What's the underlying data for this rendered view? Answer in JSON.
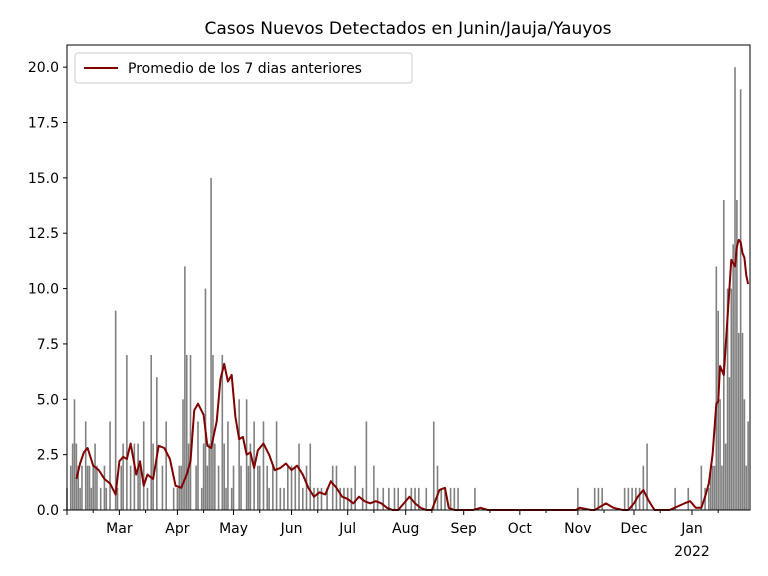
{
  "chart_data": {
    "type": "bar",
    "title": "Casos Nuevos Detectados en Junin/Jauja/Yauyos",
    "xlabel": "",
    "ylabel": "",
    "ylim": [
      0,
      21
    ],
    "yticks": [
      "0.0",
      "2.5",
      "5.0",
      "7.5",
      "10.0",
      "12.5",
      "15.0",
      "17.5",
      "20.0"
    ],
    "xlim": [
      "2021-02-01",
      "2022-02-01"
    ],
    "xticks": [
      {
        "label": "Mar",
        "sublabel": "",
        "date": "2021-03-01"
      },
      {
        "label": "Apr",
        "sublabel": "",
        "date": "2021-04-01"
      },
      {
        "label": "May",
        "sublabel": "",
        "date": "2021-05-01"
      },
      {
        "label": "Jun",
        "sublabel": "",
        "date": "2021-06-01"
      },
      {
        "label": "Jul",
        "sublabel": "",
        "date": "2021-07-01"
      },
      {
        "label": "Aug",
        "sublabel": "",
        "date": "2021-08-01"
      },
      {
        "label": "Sep",
        "sublabel": "",
        "date": "2021-09-01"
      },
      {
        "label": "Oct",
        "sublabel": "",
        "date": "2021-10-01"
      },
      {
        "label": "Nov",
        "sublabel": "",
        "date": "2021-11-01"
      },
      {
        "label": "Dec",
        "sublabel": "",
        "date": "2021-12-01"
      },
      {
        "label": "Jan",
        "sublabel": "2022",
        "date": "2022-01-01"
      }
    ],
    "grid": false,
    "legend": {
      "placement": "top-left",
      "entries": [
        "Promedio de los 7 dias anteriores"
      ]
    },
    "colors": {
      "bars": "#808080",
      "line": "#800000"
    },
    "series": [
      {
        "type": "bar",
        "x": [
          "2021-02-01",
          "2021-02-03",
          "2021-02-04",
          "2021-02-05",
          "2021-02-06",
          "2021-02-07",
          "2021-02-08",
          "2021-02-09",
          "2021-02-11",
          "2021-02-12",
          "2021-02-13",
          "2021-02-14",
          "2021-02-15",
          "2021-02-16",
          "2021-02-17",
          "2021-02-19",
          "2021-02-21",
          "2021-02-22",
          "2021-02-24",
          "2021-02-27",
          "2021-02-28",
          "2021-03-02",
          "2021-03-03",
          "2021-03-05",
          "2021-03-07",
          "2021-03-09",
          "2021-03-11",
          "2021-03-12",
          "2021-03-14",
          "2021-03-16",
          "2021-03-18",
          "2021-03-19",
          "2021-03-21",
          "2021-03-24",
          "2021-03-26",
          "2021-03-30",
          "2021-04-01",
          "2021-04-02",
          "2021-04-03",
          "2021-04-04",
          "2021-04-05",
          "2021-04-06",
          "2021-04-07",
          "2021-04-08",
          "2021-04-11",
          "2021-04-12",
          "2021-04-14",
          "2021-04-15",
          "2021-04-16",
          "2021-04-17",
          "2021-04-18",
          "2021-04-19",
          "2021-04-20",
          "2021-04-21",
          "2021-04-23",
          "2021-04-25",
          "2021-04-26",
          "2021-04-27",
          "2021-04-28",
          "2021-04-30",
          "2021-05-01",
          "2021-05-04",
          "2021-05-05",
          "2021-05-08",
          "2021-05-09",
          "2021-05-10",
          "2021-05-12",
          "2021-05-14",
          "2021-05-15",
          "2021-05-17",
          "2021-05-19",
          "2021-05-20",
          "2021-05-22",
          "2021-05-24",
          "2021-05-26",
          "2021-05-28",
          "2021-05-30",
          "2021-06-01",
          "2021-06-03",
          "2021-06-05",
          "2021-06-07",
          "2021-06-09",
          "2021-06-11",
          "2021-06-13",
          "2021-06-15",
          "2021-06-17",
          "2021-06-20",
          "2021-06-23",
          "2021-06-25",
          "2021-06-27",
          "2021-06-29",
          "2021-07-01",
          "2021-07-03",
          "2021-07-05",
          "2021-07-09",
          "2021-07-11",
          "2021-07-15",
          "2021-07-17",
          "2021-07-20",
          "2021-07-23",
          "2021-07-26",
          "2021-07-28",
          "2021-08-01",
          "2021-08-04",
          "2021-08-06",
          "2021-08-08",
          "2021-08-12",
          "2021-08-16",
          "2021-08-18",
          "2021-08-20",
          "2021-08-22",
          "2021-08-25",
          "2021-08-27",
          "2021-08-29",
          "2021-09-07",
          "2021-11-01",
          "2021-11-10",
          "2021-11-12",
          "2021-11-14",
          "2021-11-26",
          "2021-11-28",
          "2021-11-30",
          "2021-12-02",
          "2021-12-04",
          "2021-12-06",
          "2021-12-08",
          "2021-12-23",
          "2021-12-30",
          "2022-01-06",
          "2022-01-08",
          "2022-01-10",
          "2022-01-11",
          "2022-01-12",
          "2022-01-13",
          "2022-01-14",
          "2022-01-15",
          "2022-01-16",
          "2022-01-17",
          "2022-01-18",
          "2022-01-19",
          "2022-01-20",
          "2022-01-21",
          "2022-01-22",
          "2022-01-23",
          "2022-01-24",
          "2022-01-25",
          "2022-01-26",
          "2022-01-27",
          "2022-01-28",
          "2022-01-29",
          "2022-01-30",
          "2022-01-31"
        ],
        "values": [
          1,
          2,
          3,
          5,
          3,
          2,
          1,
          2,
          4,
          2,
          2,
          1,
          2,
          3,
          2,
          1,
          2,
          1,
          4,
          9,
          1,
          2,
          3,
          7,
          2,
          3,
          3,
          2,
          4,
          1,
          7,
          3,
          6,
          2,
          4,
          1,
          1,
          2,
          2,
          5,
          11,
          7,
          3,
          7,
          2,
          4,
          1,
          3,
          10,
          2,
          3,
          15,
          7,
          3,
          2,
          7,
          3,
          1,
          4,
          1,
          2,
          5,
          2,
          5,
          2,
          3,
          4,
          2,
          2,
          4,
          2,
          1,
          2,
          4,
          1,
          1,
          2,
          2,
          2,
          3,
          1,
          2,
          3,
          1,
          1,
          1,
          1,
          2,
          2,
          1,
          1,
          1,
          1,
          2,
          1,
          4,
          2,
          1,
          1,
          1,
          1,
          1,
          1,
          1,
          1,
          1,
          1,
          4,
          2,
          1,
          1,
          1,
          1,
          1,
          1,
          1,
          1,
          1,
          1,
          1,
          1,
          1,
          1,
          1,
          2,
          3,
          1,
          1,
          2,
          1,
          1,
          2,
          2,
          2,
          11,
          9,
          5,
          2,
          14,
          3,
          10,
          6,
          10,
          12,
          20,
          14,
          8,
          19,
          8,
          5,
          2,
          4
        ]
      },
      {
        "type": "line",
        "name": "Promedio de los 7 dias anteriores",
        "x": [
          "2021-02-06",
          "2021-02-08",
          "2021-02-10",
          "2021-02-12",
          "2021-02-15",
          "2021-02-18",
          "2021-02-21",
          "2021-02-24",
          "2021-02-27",
          "2021-03-01",
          "2021-03-03",
          "2021-03-05",
          "2021-03-07",
          "2021-03-10",
          "2021-03-12",
          "2021-03-14",
          "2021-03-16",
          "2021-03-19",
          "2021-03-22",
          "2021-03-25",
          "2021-03-28",
          "2021-03-31",
          "2021-04-03",
          "2021-04-06",
          "2021-04-08",
          "2021-04-10",
          "2021-04-12",
          "2021-04-15",
          "2021-04-17",
          "2021-04-19",
          "2021-04-20",
          "2021-04-22",
          "2021-04-24",
          "2021-04-26",
          "2021-04-28",
          "2021-04-30",
          "2021-05-02",
          "2021-05-04",
          "2021-05-06",
          "2021-05-08",
          "2021-05-10",
          "2021-05-12",
          "2021-05-14",
          "2021-05-17",
          "2021-05-20",
          "2021-05-23",
          "2021-05-26",
          "2021-05-29",
          "2021-06-01",
          "2021-06-04",
          "2021-06-07",
          "2021-06-10",
          "2021-06-13",
          "2021-06-16",
          "2021-06-19",
          "2021-06-22",
          "2021-06-25",
          "2021-06-28",
          "2021-07-01",
          "2021-07-04",
          "2021-07-07",
          "2021-07-10",
          "2021-07-13",
          "2021-07-16",
          "2021-07-19",
          "2021-07-22",
          "2021-07-25",
          "2021-07-28",
          "2021-07-31",
          "2021-08-03",
          "2021-08-06",
          "2021-08-09",
          "2021-08-12",
          "2021-08-15",
          "2021-08-19",
          "2021-08-22",
          "2021-08-24",
          "2021-08-27",
          "2021-08-30",
          "2021-09-02",
          "2021-09-06",
          "2021-09-10",
          "2021-09-14",
          "2021-10-01",
          "2021-10-20",
          "2021-10-31",
          "2021-11-02",
          "2021-11-08",
          "2021-11-10",
          "2021-11-16",
          "2021-11-20",
          "2021-11-25",
          "2021-11-28",
          "2021-12-01",
          "2021-12-03",
          "2021-12-06",
          "2021-12-09",
          "2021-12-12",
          "2021-12-20",
          "2021-12-28",
          "2021-12-31",
          "2022-01-03",
          "2022-01-06",
          "2022-01-08",
          "2022-01-10",
          "2022-01-12",
          "2022-01-14",
          "2022-01-15",
          "2022-01-16",
          "2022-01-18",
          "2022-01-20",
          "2022-01-22",
          "2022-01-24",
          "2022-01-25",
          "2022-01-26",
          "2022-01-27",
          "2022-01-28",
          "2022-01-29",
          "2022-01-30",
          "2022-01-31"
        ],
        "values": [
          1.4,
          2.1,
          2.6,
          2.8,
          2.0,
          1.8,
          1.4,
          1.2,
          0.7,
          2.2,
          2.4,
          2.3,
          3.0,
          1.6,
          2.2,
          1.1,
          1.6,
          1.4,
          2.9,
          2.8,
          2.3,
          1.1,
          1.0,
          1.6,
          2.2,
          4.5,
          4.8,
          4.3,
          2.9,
          2.8,
          3.2,
          4.0,
          5.9,
          6.6,
          5.8,
          6.1,
          4.2,
          3.2,
          3.3,
          2.5,
          2.6,
          1.9,
          2.7,
          3.0,
          2.5,
          1.8,
          1.9,
          2.1,
          1.8,
          2.0,
          1.6,
          1.0,
          0.6,
          0.8,
          0.7,
          1.3,
          1.0,
          0.6,
          0.5,
          0.3,
          0.6,
          0.4,
          0.3,
          0.4,
          0.3,
          0.1,
          0.0,
          0.0,
          0.3,
          0.6,
          0.3,
          0.1,
          0.0,
          0.0,
          0.9,
          1.0,
          0.1,
          0.0,
          0.0,
          0.0,
          0.0,
          0.1,
          0.0,
          0.0,
          0.0,
          0.0,
          0.1,
          0.0,
          0.0,
          0.3,
          0.1,
          0.0,
          0.0,
          0.3,
          0.6,
          0.9,
          0.4,
          0.0,
          0.0,
          0.3,
          0.4,
          0.1,
          0.1,
          0.6,
          1.2,
          2.5,
          4.8,
          4.9,
          6.5,
          6.1,
          8.7,
          11.3,
          11.0,
          11.9,
          12.2,
          12.1,
          11.6,
          11.4,
          10.6,
          10.2
        ]
      }
    ]
  }
}
